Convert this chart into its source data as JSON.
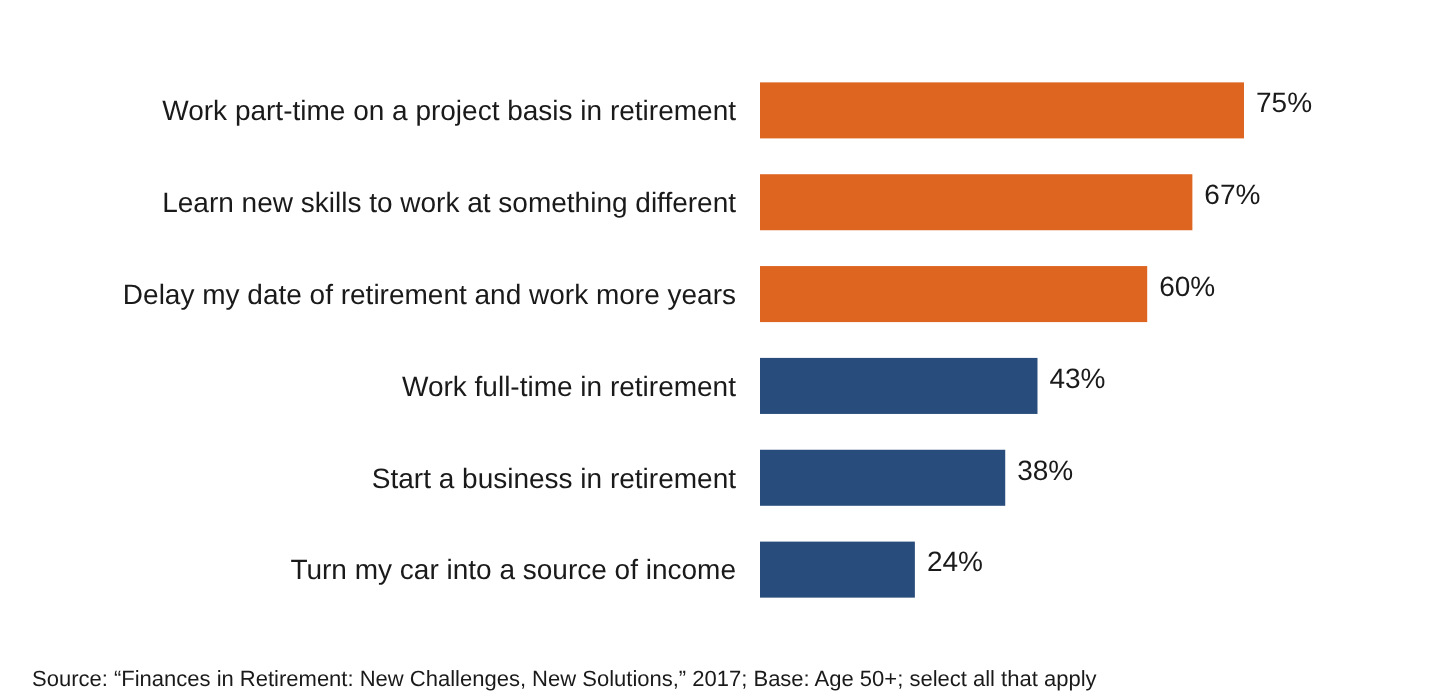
{
  "chart_data": {
    "type": "bar",
    "orientation": "horizontal",
    "categories": [
      "Work part-time on a project basis in retirement",
      "Learn new skills to work at something different",
      "Delay my date of retirement and work more years",
      "Work full-time in retirement",
      "Start a business in retirement",
      "Turn my car into a source of income"
    ],
    "values": [
      75,
      67,
      60,
      43,
      38,
      24
    ],
    "value_labels": [
      "75%",
      "67%",
      "60%",
      "43%",
      "38%",
      "24%"
    ],
    "colors": [
      "#dd6520",
      "#dd6520",
      "#dd6520",
      "#284c7b",
      "#284c7b",
      "#284c7b"
    ],
    "annotations": [
      "Source: “Finances in Retirement: New Challenges, New Solutions,” 2017; Base: Age 50+; select all that apply"
    ]
  }
}
